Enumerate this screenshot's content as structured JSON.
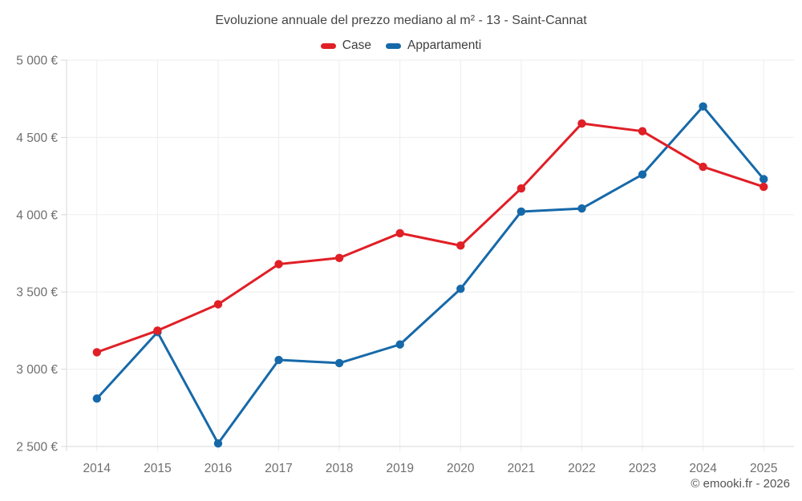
{
  "chart_data": {
    "type": "line",
    "title": "Evoluzione annuale del prezzo mediano al m² - 13 - Saint-Cannat",
    "categories": [
      "2014",
      "2015",
      "2016",
      "2017",
      "2018",
      "2019",
      "2020",
      "2021",
      "2022",
      "2023",
      "2024",
      "2025"
    ],
    "series": [
      {
        "name": "Case",
        "color": "#e01f26",
        "values": [
          3110,
          3250,
          3420,
          3680,
          3720,
          3880,
          3800,
          4170,
          4590,
          4540,
          4310,
          4180
        ]
      },
      {
        "name": "Appartamenti",
        "color": "#1669a9",
        "values": [
          2810,
          3240,
          2520,
          3060,
          3040,
          3160,
          3520,
          4020,
          4040,
          4260,
          4700,
          4230
        ]
      }
    ],
    "ylim": [
      2500,
      5000
    ],
    "yticks": [
      {
        "value": 2500,
        "label": "2 500 €"
      },
      {
        "value": 3000,
        "label": "3 000 €"
      },
      {
        "value": 3500,
        "label": "3 500 €"
      },
      {
        "value": 4000,
        "label": "4 000 €"
      },
      {
        "value": 4500,
        "label": "4 500 €"
      },
      {
        "value": 5000,
        "label": "5 000 €"
      }
    ],
    "grid": true,
    "legend_position": "top"
  },
  "footer": {
    "attribution": "© emooki.fr - 2026"
  },
  "style": {
    "grid_color": "#ededed",
    "axis_color": "#d9d9d9",
    "tick_label_color": "#6f6f6f",
    "title_color": "#454545",
    "attribution_color": "#545454",
    "background": "#ffffff"
  }
}
